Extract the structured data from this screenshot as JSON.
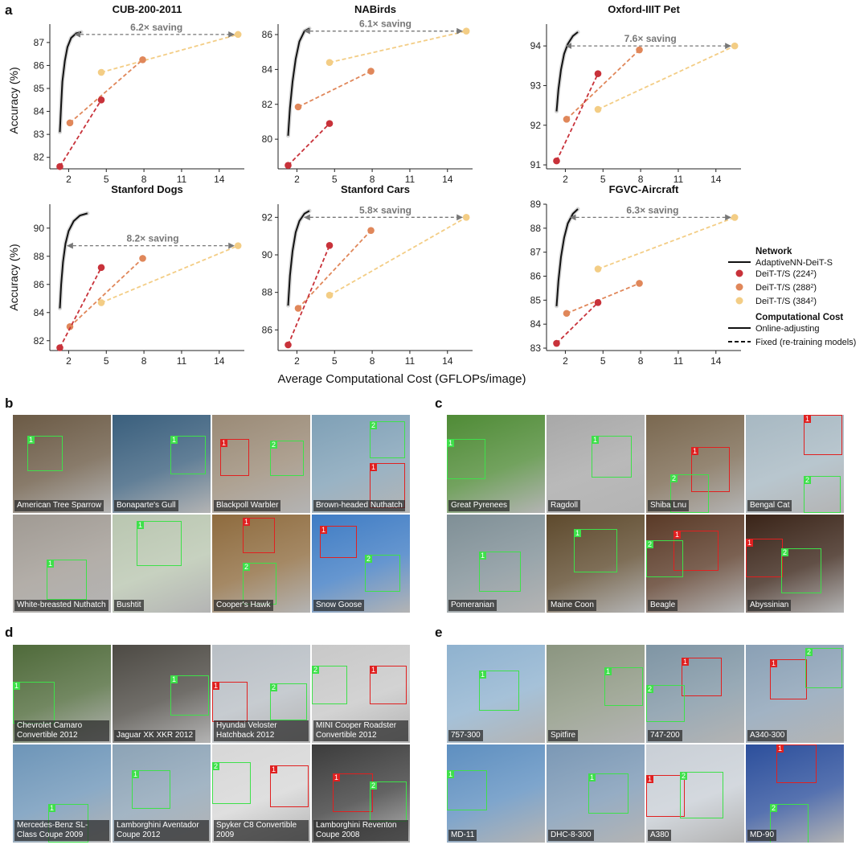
{
  "panel_letters": [
    "a",
    "b",
    "c",
    "d",
    "e"
  ],
  "chart_data": {
    "type": "line",
    "xlabel": "Average Computational Cost (GFLOPs/image)",
    "ylabel": "Accuracy (%)",
    "xticks": [
      2,
      5,
      8,
      11,
      14
    ],
    "xlim": [
      0.5,
      16
    ],
    "colors": {
      "adaptive": "#111111",
      "d224": "#c8323a",
      "d288": "#e0875a",
      "d384": "#f3cd85",
      "arrow": "#777777"
    },
    "charts": [
      {
        "title": "CUB-200-2011",
        "ylim": [
          81.5,
          87.8
        ],
        "yticks": [
          82,
          83,
          84,
          85,
          86,
          87
        ],
        "adaptive": [
          [
            1.3,
            83.1
          ],
          [
            1.4,
            84.3
          ],
          [
            1.5,
            85.3
          ],
          [
            1.7,
            86.2
          ],
          [
            1.9,
            86.8
          ],
          [
            2.2,
            87.2
          ],
          [
            2.6,
            87.4
          ],
          [
            3.0,
            87.45
          ]
        ],
        "d224": [
          [
            1.3,
            81.6
          ],
          [
            4.6,
            84.5
          ]
        ],
        "d288": [
          [
            2.1,
            83.5
          ],
          [
            7.9,
            86.25
          ]
        ],
        "d384": [
          [
            4.6,
            85.7
          ],
          [
            15.5,
            87.35
          ]
        ],
        "saving": {
          "label": "6.2× saving",
          "y": 87.35,
          "x_from": 2.5,
          "x_to": 15.5
        }
      },
      {
        "title": "NABirds",
        "ylim": [
          78.3,
          86.6
        ],
        "yticks": [
          80,
          82,
          84,
          86
        ],
        "adaptive": [
          [
            1.3,
            80.2
          ],
          [
            1.45,
            81.8
          ],
          [
            1.65,
            83.3
          ],
          [
            1.9,
            84.6
          ],
          [
            2.2,
            85.6
          ],
          [
            2.6,
            86.2
          ],
          [
            3.0,
            86.35
          ]
        ],
        "d224": [
          [
            1.3,
            78.5
          ],
          [
            4.6,
            80.9
          ]
        ],
        "d288": [
          [
            2.1,
            81.85
          ],
          [
            7.9,
            83.9
          ]
        ],
        "d384": [
          [
            4.6,
            84.4
          ],
          [
            15.5,
            86.2
          ]
        ],
        "saving": {
          "label": "6.1× saving",
          "y": 86.2,
          "x_from": 2.6,
          "x_to": 15.5
        }
      },
      {
        "title": "Oxford-IIIT Pet",
        "ylim": [
          90.9,
          94.55
        ],
        "yticks": [
          91,
          92,
          93,
          94
        ],
        "adaptive": [
          [
            1.3,
            92.35
          ],
          [
            1.45,
            92.9
          ],
          [
            1.65,
            93.4
          ],
          [
            1.9,
            93.8
          ],
          [
            2.2,
            94.05
          ],
          [
            2.6,
            94.25
          ],
          [
            3.0,
            94.35
          ]
        ],
        "d224": [
          [
            1.3,
            91.1
          ],
          [
            4.6,
            93.3
          ]
        ],
        "d288": [
          [
            2.1,
            92.15
          ],
          [
            7.9,
            93.9
          ]
        ],
        "d384": [
          [
            4.6,
            92.4
          ],
          [
            15.5,
            94.0
          ]
        ],
        "saving": {
          "label": "7.6× saving",
          "y": 94.0,
          "x_from": 2.05,
          "x_to": 15.5
        }
      },
      {
        "title": "Stanford Dogs",
        "ylim": [
          81.3,
          91.7
        ],
        "yticks": [
          82,
          84,
          86,
          88,
          90
        ],
        "adaptive": [
          [
            1.3,
            84.3
          ],
          [
            1.4,
            86.0
          ],
          [
            1.55,
            87.6
          ],
          [
            1.75,
            88.9
          ],
          [
            2.0,
            89.8
          ],
          [
            2.4,
            90.5
          ],
          [
            2.9,
            90.9
          ],
          [
            3.5,
            91.05
          ]
        ],
        "d224": [
          [
            1.3,
            81.5
          ],
          [
            4.6,
            87.2
          ]
        ],
        "d288": [
          [
            2.1,
            83.0
          ],
          [
            7.9,
            87.85
          ]
        ],
        "d384": [
          [
            4.6,
            84.7
          ],
          [
            15.5,
            88.75
          ]
        ],
        "saving": {
          "label": "8.2× saving",
          "y": 88.75,
          "x_from": 1.9,
          "x_to": 15.5
        }
      },
      {
        "title": "Stanford Cars",
        "ylim": [
          84.9,
          92.7
        ],
        "yticks": [
          86,
          88,
          90,
          92
        ],
        "adaptive": [
          [
            1.3,
            87.3
          ],
          [
            1.45,
            88.9
          ],
          [
            1.65,
            90.2
          ],
          [
            1.9,
            91.2
          ],
          [
            2.2,
            91.8
          ],
          [
            2.6,
            92.2
          ],
          [
            3.0,
            92.35
          ]
        ],
        "d224": [
          [
            1.3,
            85.2
          ],
          [
            4.6,
            90.5
          ]
        ],
        "d288": [
          [
            2.1,
            87.15
          ],
          [
            7.9,
            91.3
          ]
        ],
        "d384": [
          [
            4.6,
            87.85
          ],
          [
            15.5,
            92.0
          ]
        ],
        "saving": {
          "label": "5.8× saving",
          "y": 92.0,
          "x_from": 2.6,
          "x_to": 15.5
        }
      },
      {
        "title": "FGVC-Aircraft",
        "ylim": [
          82.9,
          89.0
        ],
        "yticks": [
          83,
          84,
          85,
          86,
          87,
          88,
          89
        ],
        "adaptive": [
          [
            1.3,
            84.75
          ],
          [
            1.45,
            85.8
          ],
          [
            1.65,
            86.8
          ],
          [
            1.9,
            87.6
          ],
          [
            2.2,
            88.2
          ],
          [
            2.6,
            88.6
          ],
          [
            3.0,
            88.8
          ]
        ],
        "d224": [
          [
            1.3,
            83.2
          ],
          [
            4.6,
            84.9
          ]
        ],
        "d288": [
          [
            2.1,
            84.45
          ],
          [
            7.9,
            85.7
          ]
        ],
        "d384": [
          [
            4.6,
            86.3
          ],
          [
            15.5,
            88.45
          ]
        ],
        "saving": {
          "label": "6.3× saving",
          "y": 88.45,
          "x_from": 2.4,
          "x_to": 15.5
        }
      }
    ],
    "legend": {
      "placement": "right of bottom-right chart",
      "network_title": "Network",
      "adaptive_label": "AdaptiveNN-DeiT-S",
      "fixed_prefix": "DeiT-T/S",
      "res_224": "224",
      "res_288": "288",
      "res_384": "384",
      "cost_title": "Computational Cost",
      "online_label": "Online-adjusting",
      "fixed_label": "Fixed (re-training models)"
    }
  },
  "gallery": {
    "b": {
      "bg": [
        "#6b5a45",
        "#3a5f7d",
        "#9a8a76",
        "#7fa0b6",
        "#a09a93",
        "#b9c6b0",
        "#8e6b3e",
        "#3f7cc4"
      ],
      "labels": [
        "American Tree Sparrow",
        "Bonaparte's Gull",
        "Blackpoll Warbler",
        "Brown-headed Nuthatch",
        "White-breasted Nuthatch",
        "Bushtit",
        "Cooper's Hawk",
        "Snow Goose"
      ]
    },
    "c": {
      "bg": [
        "#4f8b36",
        "#a8a8a8",
        "#7a6850",
        "#a7b8c2",
        "#7f8f96",
        "#5e4a2d",
        "#5a3a27",
        "#3a2418"
      ],
      "labels": [
        "Great Pyrenees",
        "Ragdoll",
        "Shiba Lnu",
        "Bengal Cat",
        "Pomeranian",
        "Maine Coon",
        "Beagle",
        "Abyssinian"
      ]
    },
    "d": {
      "bg": [
        "#4f6a3a",
        "#4d4a44",
        "#b9bfc5",
        "#c8c8c8",
        "#6d95b8",
        "#8ca3b6",
        "#d7d7d7",
        "#3c3c3c"
      ],
      "labels": [
        "Chevrolet Camaro Convertible 2012",
        "Jaguar XK XKR 2012",
        "Hyundai Veloster Hatchback 2012",
        "MINI Cooper Roadster Convertible 2012",
        "Mercedes-Benz SL-Class Coupe 2009",
        "Lamborghini Aventador Coupe 2012",
        "Spyker C8 Convertible 2009",
        "Lamborghini Reventon Coupe 2008"
      ]
    },
    "e": {
      "bg": [
        "#8fb2cf",
        "#8b9580",
        "#7f95a4",
        "#8aa0b5",
        "#5e8fc0",
        "#7b98b5",
        "#c9cfd6",
        "#2c4f9c"
      ],
      "labels": [
        "757-300",
        "Spitfire",
        "747-200",
        "A340-300",
        "MD-11",
        "DHC-8-300",
        "A380",
        "MD-90"
      ]
    }
  }
}
